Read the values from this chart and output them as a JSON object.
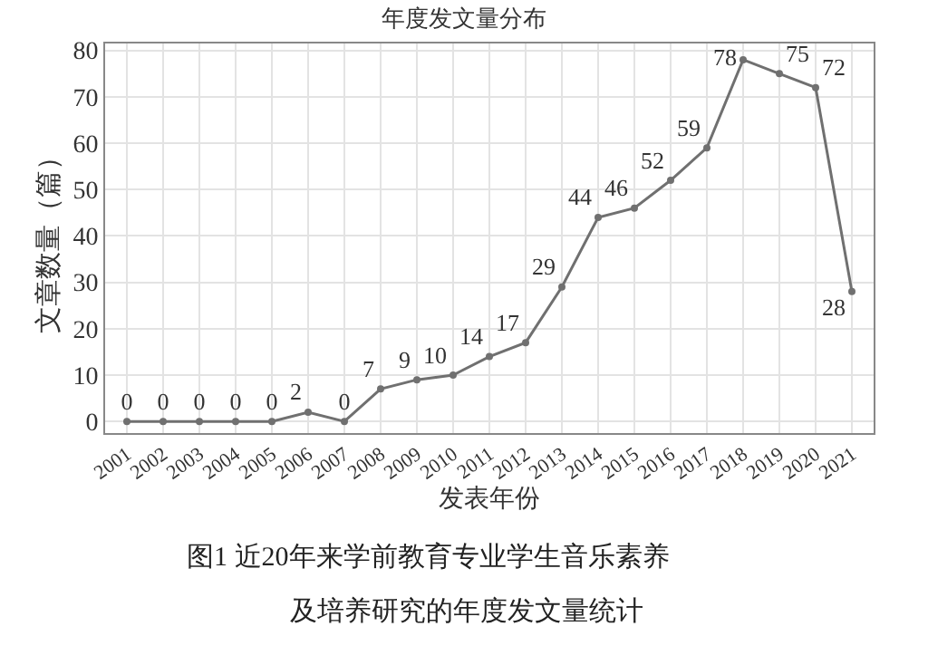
{
  "chart_data": {
    "type": "line",
    "title": "年度发文量分布",
    "xlabel": "发表年份",
    "ylabel": "文章数量（篇）",
    "categories": [
      "2001",
      "2002",
      "2003",
      "2004",
      "2005",
      "2006",
      "2007",
      "2008",
      "2009",
      "2010",
      "2011",
      "2012",
      "2013",
      "2014",
      "2015",
      "2016",
      "2017",
      "2018",
      "2019",
      "2020",
      "2021"
    ],
    "series": [
      {
        "color": "#707070",
        "values": [
          0,
          0,
          0,
          0,
          0,
          2,
          0,
          7,
          9,
          10,
          14,
          17,
          29,
          44,
          46,
          52,
          59,
          78,
          75,
          72,
          28
        ]
      }
    ],
    "ylim": [
      -2.5,
      81.5
    ],
    "yticks": [
      0,
      10,
      20,
      30,
      40,
      50,
      60,
      70,
      80
    ],
    "grid": true,
    "marker": "circle",
    "line_style": "solid",
    "data_labels": true,
    "legend": false,
    "annotations": [
      "图1 近20年来学前教育专业学生音乐素养",
      "及培养研究的年度发文量统计"
    ]
  }
}
